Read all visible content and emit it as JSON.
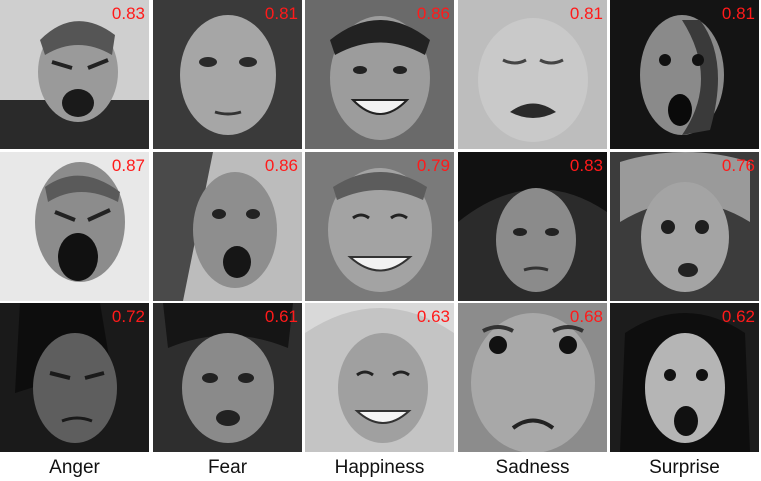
{
  "columns": [
    {
      "label": "Anger",
      "icon": "anger-face-icon",
      "scores": [
        "0.83",
        "0.87",
        "0.72"
      ]
    },
    {
      "label": "Fear",
      "icon": "fear-face-icon",
      "scores": [
        "0.81",
        "0.86",
        "0.61"
      ]
    },
    {
      "label": "Happiness",
      "icon": "happiness-face-icon",
      "scores": [
        "0.86",
        "0.79",
        "0.63"
      ]
    },
    {
      "label": "Sadness",
      "icon": "sadness-face-icon",
      "scores": [
        "0.81",
        "0.83",
        "0.68"
      ]
    },
    {
      "label": "Surprise",
      "icon": "surprise-face-icon",
      "scores": [
        "0.81",
        "0.76",
        "0.62"
      ]
    }
  ],
  "colors": {
    "score": "#ff1a1a",
    "label": "#111111"
  }
}
